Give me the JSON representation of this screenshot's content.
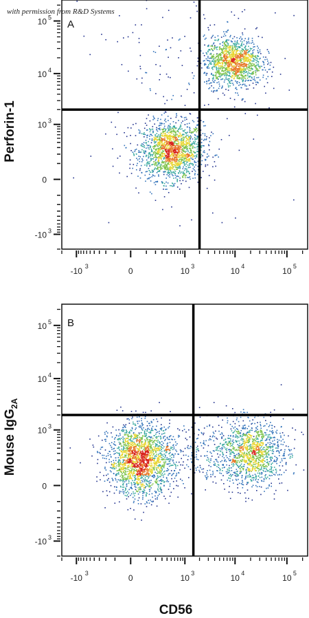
{
  "credit": "with permission from R&D Systems",
  "xlabel": "CD56",
  "colormap": [
    "#1f2f8c",
    "#2d6fb8",
    "#3aa9a0",
    "#7cc24a",
    "#e8d630",
    "#e8782a",
    "#d8231e"
  ],
  "chart_data": [
    {
      "type": "scatter",
      "panel": "A",
      "ylabel": "Perforin-1",
      "xscale": "biexponential",
      "yscale": "biexponential",
      "xlim": [
        -2000,
        250000
      ],
      "ylim": [
        -2000,
        250000
      ],
      "x_ticks": [
        {
          "base": "-10",
          "exp": "3"
        },
        {
          "base": "0",
          "exp": ""
        },
        {
          "base": "10",
          "exp": "3"
        },
        {
          "base": "10",
          "exp": "4"
        },
        {
          "base": "10",
          "exp": "5"
        }
      ],
      "y_ticks": [
        {
          "base": "-10",
          "exp": "3"
        },
        {
          "base": "0",
          "exp": ""
        },
        {
          "base": "10",
          "exp": "3"
        },
        {
          "base": "10",
          "exp": "4"
        },
        {
          "base": "10",
          "exp": "5"
        }
      ],
      "quadrant_gate": {
        "x": 2000,
        "y": 2000
      },
      "populations": [
        {
          "center": [
            500,
            250
          ],
          "spread": [
            0.55,
            0.5
          ],
          "events": 1700
        },
        {
          "center": [
            9000,
            17000
          ],
          "spread": [
            0.5,
            0.42
          ],
          "events": 1300
        },
        {
          "center": [
            1500,
            20000
          ],
          "spread": [
            2.0,
            2.4
          ],
          "events": 260
        }
      ],
      "grid": false
    },
    {
      "type": "scatter",
      "panel": "B",
      "ylabel": "Mouse IgG",
      "ylabel_subscript": "2A",
      "xscale": "biexponential",
      "yscale": "biexponential",
      "xlim": [
        -2000,
        250000
      ],
      "ylim": [
        -2000,
        250000
      ],
      "x_ticks": [
        {
          "base": "-10",
          "exp": "3"
        },
        {
          "base": "0",
          "exp": ""
        },
        {
          "base": "10",
          "exp": "3"
        },
        {
          "base": "10",
          "exp": "4"
        },
        {
          "base": "10",
          "exp": "5"
        }
      ],
      "y_ticks": [
        {
          "base": "-10",
          "exp": "3"
        },
        {
          "base": "0",
          "exp": ""
        },
        {
          "base": "10",
          "exp": "3"
        },
        {
          "base": "10",
          "exp": "4"
        },
        {
          "base": "10",
          "exp": "5"
        }
      ],
      "quadrant_gate": {
        "x": 1500,
        "y": 2000
      },
      "populations": [
        {
          "center": [
            50,
            200
          ],
          "spread": [
            0.55,
            0.6
          ],
          "events": 1900
        },
        {
          "center": [
            20000,
            300
          ],
          "spread": [
            0.55,
            0.55
          ],
          "events": 1100
        },
        {
          "center": [
            2500,
            350
          ],
          "spread": [
            1.6,
            0.6
          ],
          "events": 500
        }
      ],
      "grid": false
    }
  ]
}
